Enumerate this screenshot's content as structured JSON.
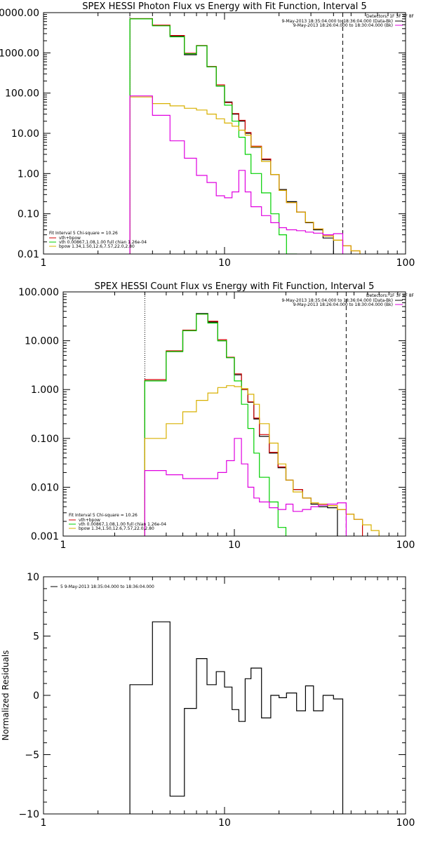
{
  "colors": {
    "data": "#000000",
    "total": "#d00000",
    "vth": "#00d000",
    "bpow": "#d8b000",
    "bk": "#e000e0"
  },
  "chart_data": [
    {
      "type": "line",
      "title": "SPEX HESSI Photon Flux vs Energy with Fit Function, Interval 5",
      "xscale": "log",
      "yscale": "log",
      "xlim": [
        1,
        100
      ],
      "ylim": [
        0.01,
        10000
      ],
      "xticks": [
        {
          "v": 1,
          "label": "1"
        },
        {
          "v": 10,
          "label": "10"
        },
        {
          "v": 100,
          "label": "100"
        }
      ],
      "yticks": [
        {
          "v": 10000,
          "label": "10000.00"
        },
        {
          "v": 1000,
          "label": "1000.00"
        },
        {
          "v": 100,
          "label": "100.00"
        },
        {
          "v": 10,
          "label": "10.00"
        },
        {
          "v": 1,
          "label": "1.00"
        },
        {
          "v": 0.1,
          "label": "0.10"
        },
        {
          "v": 0.01,
          "label": "0.01"
        }
      ],
      "vlines": [
        {
          "x": 3,
          "style": "dotted"
        },
        {
          "x": 45,
          "style": "dashed"
        }
      ],
      "legend_top": {
        "header": "Detectors: 1F 3F 4F 8F",
        "items": [
          {
            "text": "9-May-2013 18:35:04.000 to 18:36:04.000 (Data-Bk)",
            "color": "data"
          },
          {
            "text": "9-May-2013 18:26:04.000 to 18:30:04.000 (Bk)",
            "color": "bk"
          }
        ]
      },
      "legend_fit": {
        "header": "Fit Interval 5   Chi-square = 10.26",
        "items": [
          {
            "text": "vth+bpow",
            "color": "total"
          },
          {
            "text": "vth 0.00867,1.08,1.00  full chian 1.26e-04",
            "color": "vth"
          },
          {
            "text": "bpow 1.34,1.50,12.6,7.57,22.0,2.80",
            "color": "bpow"
          }
        ]
      },
      "edges": [
        3,
        4,
        5,
        6,
        7,
        8,
        9,
        10,
        11,
        12,
        13,
        14,
        16,
        18,
        20,
        22,
        25,
        28,
        31,
        35,
        40,
        45,
        50,
        56,
        63,
        70
      ],
      "series": [
        {
          "name": "Data-Bk",
          "color": "data",
          "values": [
            7000,
            4800,
            2600,
            900,
            1500,
            450,
            150,
            60,
            30,
            20,
            10,
            4.5,
            2.2,
            0.95,
            0.4,
            0.2,
            0.11,
            0.06,
            0.04,
            0.025
          ]
        },
        {
          "name": "vth+bpow",
          "color": "total",
          "values": [
            7100,
            4900,
            2700,
            980,
            1520,
            460,
            160,
            58,
            31,
            21,
            10.5,
            4.8,
            2.3,
            0.95,
            0.38,
            0.19,
            0.11,
            0.062,
            0.042,
            0.028,
            0.022,
            0.016,
            0.012
          ]
        },
        {
          "name": "vth",
          "color": "vth",
          "values": [
            7000,
            4700,
            2500,
            950,
            1500,
            450,
            150,
            50,
            20,
            8,
            3,
            1.0,
            0.33,
            0.1,
            0.03,
            0.01
          ]
        },
        {
          "name": "bpow",
          "color": "bpow",
          "values": [
            80,
            55,
            48,
            42,
            38,
            30,
            23,
            18,
            15,
            12,
            9,
            4.6,
            2.0,
            0.95,
            0.38,
            0.19,
            0.11,
            0.062,
            0.042,
            0.028,
            0.022,
            0.016,
            0.012,
            0.009,
            0.007
          ]
        },
        {
          "name": "Bk",
          "color": "bk",
          "values": [
            85,
            28,
            6.5,
            2.4,
            0.9,
            0.6,
            0.28,
            0.25,
            0.35,
            1.2,
            0.35,
            0.15,
            0.09,
            0.06,
            0.045,
            0.04,
            0.038,
            0.035,
            0.033,
            0.03,
            0.032
          ]
        }
      ]
    },
    {
      "type": "line",
      "title": "SPEX HESSI Count Flux vs Energy with Fit Function, Interval 5",
      "xscale": "log",
      "yscale": "log",
      "xlim": [
        1,
        100
      ],
      "ylim": [
        0.001,
        100
      ],
      "xticks": [
        {
          "v": 1,
          "label": "1"
        },
        {
          "v": 10,
          "label": "10"
        },
        {
          "v": 100,
          "label": "100"
        }
      ],
      "yticks": [
        {
          "v": 100,
          "label": "100.000"
        },
        {
          "v": 10,
          "label": "10.000"
        },
        {
          "v": 1,
          "label": "1.000"
        },
        {
          "v": 0.1,
          "label": "0.100"
        },
        {
          "v": 0.01,
          "label": "0.010"
        },
        {
          "v": 0.001,
          "label": "0.001"
        }
      ],
      "vlines": [
        {
          "x": 3,
          "style": "dotted"
        },
        {
          "x": 45,
          "style": "dashed"
        }
      ],
      "legend_top": {
        "header": "Detectors: 1F 3F 4F 8F",
        "items": [
          {
            "text": "9-May-2013 18:35:04.000 to 18:36:04.000 (Data-Bk)",
            "color": "data"
          },
          {
            "text": "9-May-2013 18:26:04.000 to 18:30:04.000 (Bk)",
            "color": "bk"
          }
        ]
      },
      "legend_fit": {
        "header": "Fit Interval 5   Chi-square = 10.26",
        "items": [
          {
            "text": "vth+bpow",
            "color": "total"
          },
          {
            "text": "vth 0.00867,1.08,1.00  full chian 1.26e-04",
            "color": "vth"
          },
          {
            "text": "bpow 1.34,1.50,12.6,7.57,22.0,2.80",
            "color": "bpow"
          }
        ]
      },
      "edges": [
        3,
        4,
        5,
        6,
        7,
        8,
        9,
        10,
        11,
        12,
        13,
        14,
        16,
        18,
        20,
        22,
        25,
        28,
        31,
        35,
        40,
        45,
        50,
        56,
        63,
        70
      ],
      "series": [
        {
          "name": "Data-Bk",
          "color": "data",
          "values": [
            1.5,
            6,
            16,
            36,
            24,
            10,
            4.5,
            2.0,
            1.0,
            0.55,
            0.25,
            0.11,
            0.05,
            0.025,
            0.014,
            0.009,
            0.006,
            0.0045,
            0.004,
            0.0038
          ]
        },
        {
          "name": "vth+bpow",
          "color": "total",
          "values": [
            1.6,
            6.2,
            16.5,
            35,
            25,
            10.5,
            4.6,
            2.1,
            1.0,
            0.56,
            0.26,
            0.12,
            0.052,
            0.026,
            0.014,
            0.009,
            0.006,
            0.0048,
            0.0045,
            0.0042,
            0.0035,
            0.0028,
            0.0022
          ]
        },
        {
          "name": "vth",
          "color": "vth",
          "values": [
            1.5,
            6,
            16,
            35,
            23,
            10,
            4.5,
            1.5,
            0.5,
            0.16,
            0.05,
            0.016,
            0.005,
            0.0015
          ]
        },
        {
          "name": "bpow",
          "color": "bpow",
          "values": [
            0.1,
            0.2,
            0.35,
            0.6,
            0.85,
            1.1,
            1.2,
            1.15,
            1.05,
            0.8,
            0.5,
            0.2,
            0.08,
            0.03,
            0.014,
            0.008,
            0.006,
            0.0048,
            0.0045,
            0.0042,
            0.0035,
            0.0028,
            0.0022,
            0.0017,
            0.0013
          ]
        },
        {
          "name": "Bk",
          "color": "bk",
          "values": [
            0.022,
            0.018,
            0.015,
            0.015,
            0.015,
            0.02,
            0.035,
            0.1,
            0.03,
            0.01,
            0.006,
            0.005,
            0.0038,
            0.0035,
            0.0045,
            0.0032,
            0.0035,
            0.004,
            0.0043,
            0.0045,
            0.0048
          ]
        }
      ]
    },
    {
      "type": "line",
      "xscale": "log",
      "yscale": "linear",
      "ylabel": "Normalized Residuals",
      "xlim": [
        1,
        100
      ],
      "ylim": [
        -10,
        10
      ],
      "xticks": [
        {
          "v": 1,
          "label": "1"
        },
        {
          "v": 10,
          "label": "10"
        },
        {
          "v": 100,
          "label": "100"
        }
      ],
      "yticks": [
        {
          "v": 10,
          "label": "10"
        },
        {
          "v": 5,
          "label": "5"
        },
        {
          "v": 0,
          "label": "0"
        },
        {
          "v": -5,
          "label": "−5"
        },
        {
          "v": -10,
          "label": "−10"
        }
      ],
      "legend_top": {
        "header": "",
        "items": [
          {
            "text": "5  9-May-2013 18:35:04.000 to 18:36:04.000",
            "color": "data"
          }
        ]
      },
      "edges": [
        3,
        4,
        5,
        6,
        7,
        8,
        9,
        10,
        11,
        12,
        13,
        14,
        16,
        18,
        20,
        22,
        25,
        28,
        31,
        35,
        40,
        45
      ],
      "series": [
        {
          "name": "5  9-May-2013 18:35:04.000 to 18:36:04.000",
          "color": "data",
          "values": [
            0.9,
            6.2,
            -8.5,
            -1.1,
            3.1,
            0.9,
            2.0,
            0.7,
            -1.2,
            -2.2,
            1.4,
            2.3,
            -1.9,
            0,
            -0.2,
            0.2,
            -1.3,
            0.8,
            -1.3,
            0,
            -0.3
          ]
        }
      ]
    }
  ]
}
